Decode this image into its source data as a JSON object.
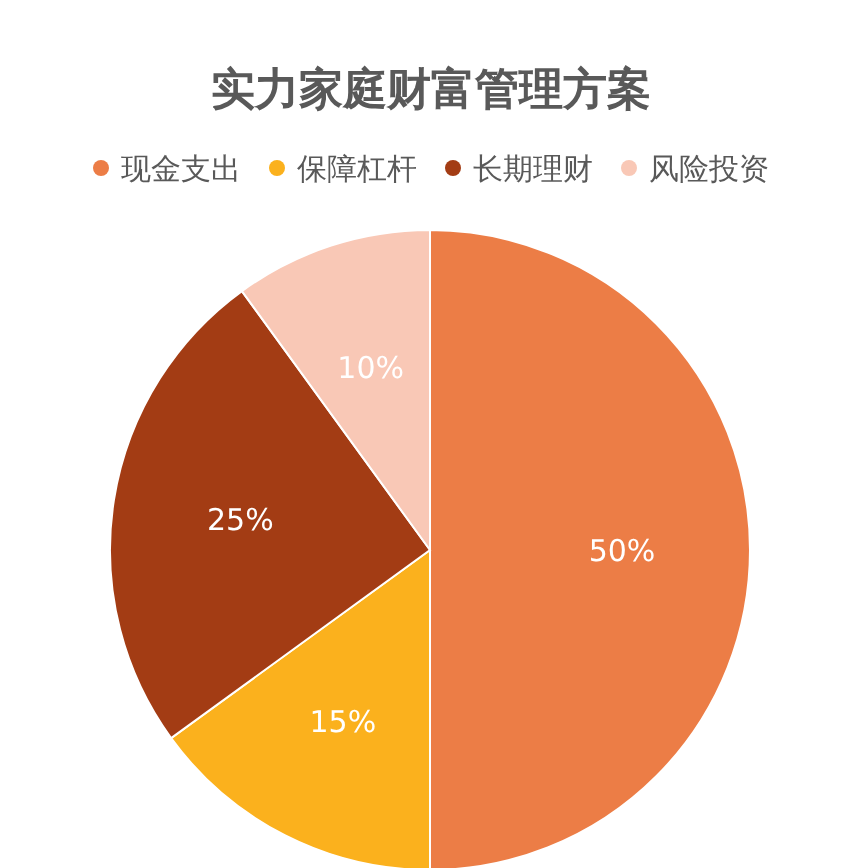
{
  "chart_data": {
    "type": "pie",
    "title": "实力家庭财富管理方案",
    "categories": [
      "现金支出",
      "保障杠杆",
      "长期理财",
      "风险投资"
    ],
    "values": [
      50,
      15,
      25,
      10
    ],
    "colors": [
      "#ec7d46",
      "#fbb11d",
      "#a33c14",
      "#f9c8b6"
    ],
    "value_labels": [
      "50%",
      "15%",
      "25%",
      "10%"
    ],
    "legend": "top"
  }
}
